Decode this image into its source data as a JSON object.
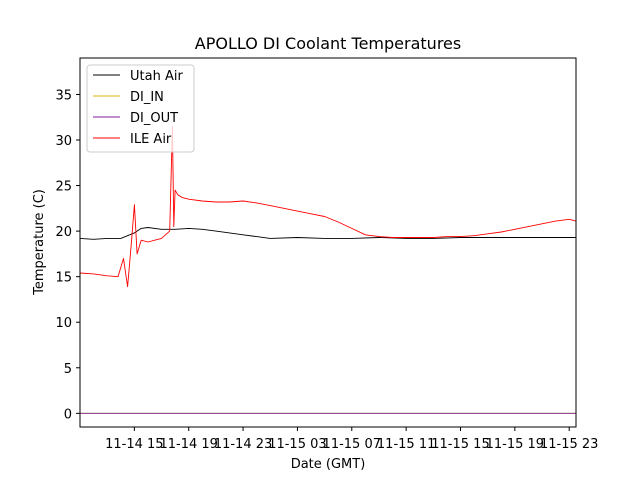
{
  "chart_data": {
    "type": "line",
    "title": "APOLLO DI Coolant Temperatures",
    "xlabel": "Date (GMT)",
    "ylabel": "Temperature (C)",
    "x_start": "11-14 11",
    "x_unit": "hours since 11-14 11:00 GMT",
    "xlim": [
      0,
      36.5
    ],
    "ylim": [
      -1.5,
      39
    ],
    "yticks": [
      0,
      5,
      10,
      15,
      20,
      25,
      30,
      35
    ],
    "xticks": [
      {
        "x": 4,
        "label": "11-14 15"
      },
      {
        "x": 8,
        "label": "11-14 19"
      },
      {
        "x": 12,
        "label": "11-14 23"
      },
      {
        "x": 16,
        "label": "11-15 03"
      },
      {
        "x": 20,
        "label": "11-15 07"
      },
      {
        "x": 24,
        "label": "11-15 11"
      },
      {
        "x": 28,
        "label": "11-15 15"
      },
      {
        "x": 32,
        "label": "11-15 19"
      },
      {
        "x": 36,
        "label": "11-15 23"
      }
    ],
    "legend_position": "top-left",
    "series": [
      {
        "name": "Utah Air",
        "color": "#000000",
        "x": [
          0,
          1,
          2,
          3,
          4,
          4.5,
          5,
          6,
          7,
          8,
          9,
          10,
          11,
          12,
          13,
          14,
          16,
          18,
          20,
          22,
          24,
          26,
          28,
          30,
          32,
          34,
          36,
          36.5
        ],
        "y": [
          19.2,
          19.1,
          19.2,
          19.2,
          19.8,
          20.3,
          20.4,
          20.2,
          20.2,
          20.3,
          20.2,
          20.0,
          19.8,
          19.6,
          19.4,
          19.2,
          19.3,
          19.2,
          19.2,
          19.3,
          19.2,
          19.2,
          19.3,
          19.3,
          19.3,
          19.3,
          19.3,
          19.3
        ]
      },
      {
        "name": "DI_IN",
        "color": "#dbb40c",
        "x": [
          0,
          36.5
        ],
        "y": [
          0,
          0
        ]
      },
      {
        "name": "DI_OUT",
        "color": "#7e1e9c",
        "x": [
          0,
          36.5
        ],
        "y": [
          0,
          0
        ]
      },
      {
        "name": "ILE Air",
        "color": "#ff0000",
        "x": [
          0,
          1,
          2,
          2.8,
          3.2,
          3.5,
          3.8,
          4.0,
          4.2,
          4.5,
          5.0,
          6.0,
          6.6,
          6.8,
          6.9,
          7.0,
          7.2,
          7.5,
          8.0,
          9.0,
          10.0,
          11.0,
          12.0,
          13.0,
          14.0,
          15.0,
          16.0,
          17.0,
          18.0,
          19.0,
          20.0,
          21.0,
          22.0,
          23.0,
          24.0,
          25.0,
          26.0,
          27.0,
          28.0,
          29.0,
          30.0,
          31.0,
          32.0,
          33.0,
          34.0,
          35.0,
          36.0,
          36.5
        ],
        "y": [
          15.4,
          15.3,
          15.1,
          15.0,
          17.0,
          13.9,
          19.0,
          22.9,
          17.5,
          19.0,
          18.8,
          19.2,
          20.0,
          31.5,
          20.5,
          24.5,
          24.0,
          23.7,
          23.5,
          23.3,
          23.2,
          23.2,
          23.3,
          23.1,
          22.8,
          22.5,
          22.2,
          21.9,
          21.6,
          21.0,
          20.3,
          19.6,
          19.4,
          19.3,
          19.3,
          19.3,
          19.3,
          19.4,
          19.4,
          19.5,
          19.7,
          19.9,
          20.2,
          20.5,
          20.8,
          21.1,
          21.3,
          21.1
        ]
      }
    ]
  }
}
